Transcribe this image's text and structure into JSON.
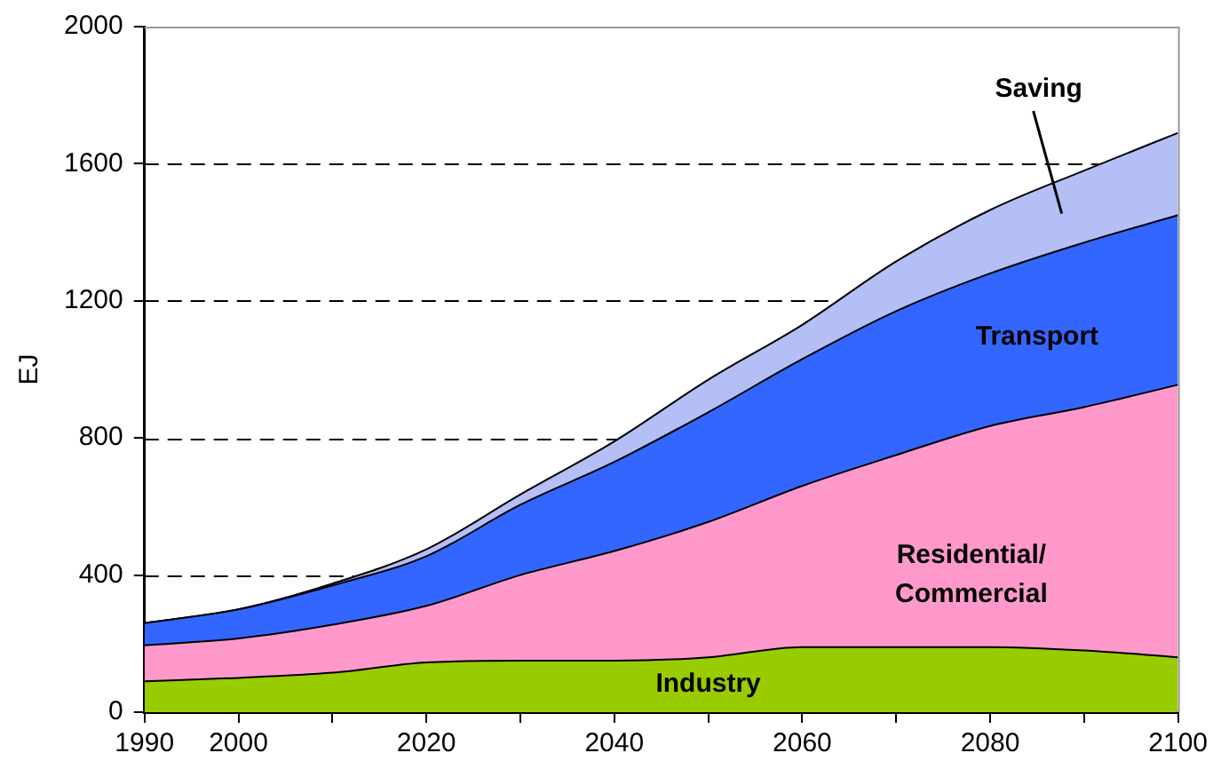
{
  "chart_data": {
    "type": "area",
    "stacked": true,
    "ylabel": "EJ",
    "x": [
      1990,
      2000,
      2010,
      2020,
      2030,
      2040,
      2050,
      2060,
      2070,
      2080,
      2090,
      2100
    ],
    "xlim": [
      1990,
      2100
    ],
    "xticks": [
      1990,
      2000,
      {
        "value": 2010,
        "label": null
      },
      2020,
      {
        "value": 2030,
        "label": null
      },
      2040,
      {
        "value": 2050,
        "label": null
      },
      2060,
      {
        "value": 2070,
        "label": null
      },
      2080,
      {
        "value": 2090,
        "label": null
      },
      2100
    ],
    "ylim": [
      0,
      2000
    ],
    "yticks": [
      0,
      400,
      800,
      1200,
      1600,
      2000
    ],
    "grid": "y",
    "legend": false,
    "series": [
      {
        "name": "Industry",
        "color": "#99cc00",
        "values": [
          90,
          100,
          115,
          145,
          150,
          150,
          160,
          190,
          190,
          190,
          180,
          160
        ]
      },
      {
        "name": "Residential/ Commercial",
        "color": "#ff99cc",
        "values": [
          105,
          115,
          140,
          165,
          250,
          320,
          395,
          470,
          560,
          645,
          710,
          795
        ]
      },
      {
        "name": "Transport",
        "color": "#3366ff",
        "values": [
          65,
          85,
          115,
          145,
          205,
          260,
          320,
          370,
          420,
          445,
          480,
          495
        ]
      },
      {
        "name": "Saving",
        "color": "#b3bff5",
        "values": [
          0,
          0,
          5,
          20,
          30,
          60,
          95,
          100,
          145,
          185,
          210,
          240
        ]
      }
    ]
  }
}
